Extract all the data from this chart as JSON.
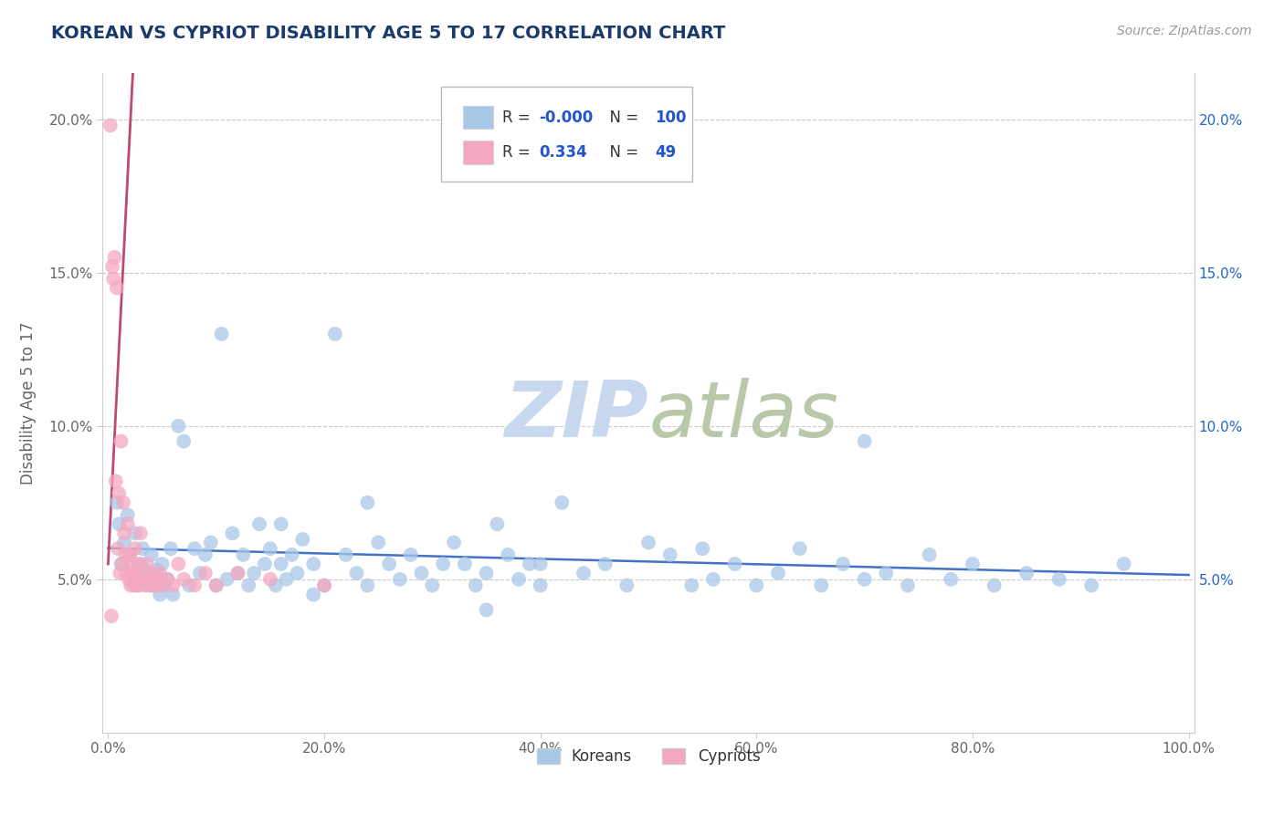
{
  "title": "KOREAN VS CYPRIOT DISABILITY AGE 5 TO 17 CORRELATION CHART",
  "source": "Source: ZipAtlas.com",
  "ylabel": "Disability Age 5 to 17",
  "xlim": [
    -0.005,
    1.005
  ],
  "ylim": [
    0.0,
    0.215
  ],
  "xticks": [
    0.0,
    0.2,
    0.4,
    0.6,
    0.8,
    1.0
  ],
  "xticklabels": [
    "0.0%",
    "20.0%",
    "40.0%",
    "60.0%",
    "80.0%",
    "100.0%"
  ],
  "yticks": [
    0.05,
    0.1,
    0.15,
    0.2
  ],
  "yticklabels_left": [
    "5.0%",
    "10.0%",
    "15.0%",
    "20.0%"
  ],
  "yticklabels_right": [
    "5.0%",
    "10.0%",
    "15.0%",
    "20.0%"
  ],
  "legend_r_korean": "-0.000",
  "legend_n_korean": "100",
  "legend_r_cypriot": "0.334",
  "legend_n_cypriot": "49",
  "korean_color": "#a8c8e8",
  "cypriot_color": "#f4a8c0",
  "korean_line_color": "#4472c4",
  "cypriot_line_color": "#c04878",
  "cypriot_dash_color": "#e090b0",
  "title_color": "#1a3a6b",
  "axis_label_color": "#666666",
  "tick_color": "#666666",
  "grid_color": "#cccccc",
  "watermark_color": "#c8d8ee",
  "korean_scatter_x": [
    0.008,
    0.01,
    0.012,
    0.015,
    0.018,
    0.02,
    0.022,
    0.025,
    0.028,
    0.03,
    0.032,
    0.035,
    0.038,
    0.04,
    0.042,
    0.045,
    0.048,
    0.05,
    0.052,
    0.055,
    0.058,
    0.06,
    0.065,
    0.07,
    0.075,
    0.08,
    0.085,
    0.09,
    0.095,
    0.1,
    0.105,
    0.11,
    0.115,
    0.12,
    0.125,
    0.13,
    0.135,
    0.14,
    0.145,
    0.15,
    0.155,
    0.16,
    0.165,
    0.17,
    0.175,
    0.18,
    0.19,
    0.2,
    0.21,
    0.22,
    0.23,
    0.24,
    0.25,
    0.26,
    0.27,
    0.28,
    0.29,
    0.3,
    0.31,
    0.32,
    0.33,
    0.34,
    0.35,
    0.36,
    0.37,
    0.38,
    0.39,
    0.4,
    0.42,
    0.44,
    0.46,
    0.48,
    0.5,
    0.52,
    0.54,
    0.56,
    0.58,
    0.6,
    0.62,
    0.64,
    0.66,
    0.68,
    0.7,
    0.72,
    0.74,
    0.76,
    0.78,
    0.8,
    0.82,
    0.85,
    0.88,
    0.91,
    0.94,
    0.16,
    0.19,
    0.24,
    0.35,
    0.4,
    0.55,
    0.7
  ],
  "korean_scatter_y": [
    0.075,
    0.068,
    0.055,
    0.062,
    0.071,
    0.058,
    0.052,
    0.065,
    0.048,
    0.055,
    0.06,
    0.053,
    0.048,
    0.058,
    0.05,
    0.053,
    0.045,
    0.055,
    0.048,
    0.05,
    0.06,
    0.045,
    0.1,
    0.095,
    0.048,
    0.06,
    0.052,
    0.058,
    0.062,
    0.048,
    0.13,
    0.05,
    0.065,
    0.052,
    0.058,
    0.048,
    0.052,
    0.068,
    0.055,
    0.06,
    0.048,
    0.055,
    0.05,
    0.058,
    0.052,
    0.063,
    0.055,
    0.048,
    0.13,
    0.058,
    0.052,
    0.048,
    0.062,
    0.055,
    0.05,
    0.058,
    0.052,
    0.048,
    0.055,
    0.062,
    0.055,
    0.048,
    0.052,
    0.068,
    0.058,
    0.05,
    0.055,
    0.048,
    0.075,
    0.052,
    0.055,
    0.048,
    0.062,
    0.058,
    0.048,
    0.05,
    0.055,
    0.048,
    0.052,
    0.06,
    0.048,
    0.055,
    0.05,
    0.052,
    0.048,
    0.058,
    0.05,
    0.055,
    0.048,
    0.052,
    0.05,
    0.048,
    0.055,
    0.068,
    0.045,
    0.075,
    0.04,
    0.055,
    0.06,
    0.095
  ],
  "cypriot_scatter_x": [
    0.002,
    0.003,
    0.004,
    0.005,
    0.006,
    0.007,
    0.008,
    0.009,
    0.01,
    0.011,
    0.012,
    0.013,
    0.014,
    0.015,
    0.016,
    0.017,
    0.018,
    0.019,
    0.02,
    0.021,
    0.022,
    0.023,
    0.024,
    0.025,
    0.026,
    0.027,
    0.028,
    0.029,
    0.03,
    0.032,
    0.034,
    0.036,
    0.038,
    0.04,
    0.042,
    0.044,
    0.046,
    0.048,
    0.05,
    0.055,
    0.06,
    0.065,
    0.07,
    0.08,
    0.09,
    0.1,
    0.12,
    0.15,
    0.2
  ],
  "cypriot_scatter_y": [
    0.198,
    0.038,
    0.152,
    0.148,
    0.155,
    0.082,
    0.145,
    0.06,
    0.078,
    0.052,
    0.095,
    0.055,
    0.075,
    0.065,
    0.058,
    0.052,
    0.068,
    0.05,
    0.058,
    0.048,
    0.055,
    0.052,
    0.048,
    0.06,
    0.052,
    0.048,
    0.055,
    0.05,
    0.065,
    0.052,
    0.048,
    0.055,
    0.05,
    0.048,
    0.052,
    0.048,
    0.05,
    0.052,
    0.048,
    0.05,
    0.048,
    0.055,
    0.05,
    0.048,
    0.052,
    0.048,
    0.052,
    0.05,
    0.048
  ]
}
